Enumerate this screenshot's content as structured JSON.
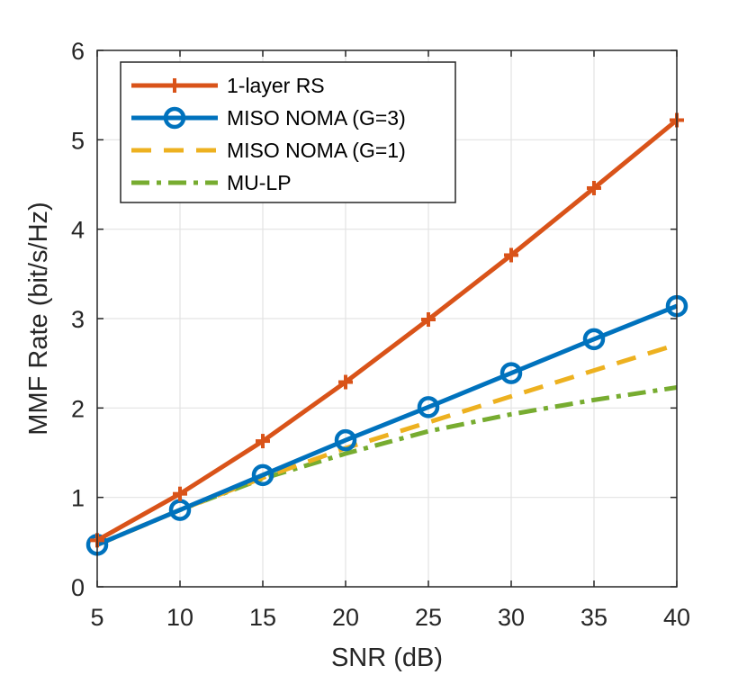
{
  "chart_data": {
    "type": "line",
    "title": "",
    "xlabel": "SNR (dB)",
    "ylabel": "MMF Rate (bit/s/Hz)",
    "x": [
      5,
      10,
      15,
      20,
      25,
      30,
      35,
      40
    ],
    "xlim": [
      5,
      40
    ],
    "ylim": [
      0,
      6
    ],
    "xticks": [
      "5",
      "10",
      "15",
      "20",
      "25",
      "30",
      "35",
      "40"
    ],
    "yticks": [
      "0",
      "1",
      "2",
      "3",
      "4",
      "5",
      "6"
    ],
    "grid": true,
    "legend_position": "top-left",
    "series": [
      {
        "name": "1-layer RS",
        "color": "#D95319",
        "marker": "plus",
        "dash": "solid",
        "values": [
          0.52,
          1.04,
          1.63,
          2.29,
          2.99,
          3.71,
          4.46,
          5.22
        ]
      },
      {
        "name": "MISO NOMA (G=3)",
        "color": "#0072BD",
        "marker": "circle",
        "dash": "solid",
        "values": [
          0.47,
          0.86,
          1.25,
          1.64,
          2.01,
          2.39,
          2.77,
          3.14
        ]
      },
      {
        "name": "MISO NOMA (G=1)",
        "color": "#EDB120",
        "marker": "none",
        "dash": "dashed",
        "values": [
          0.47,
          0.86,
          1.22,
          1.55,
          1.84,
          2.13,
          2.42,
          2.71
        ]
      },
      {
        "name": "MU-LP",
        "color": "#77AC30",
        "marker": "none",
        "dash": "dashdot",
        "values": [
          0.47,
          0.86,
          1.21,
          1.49,
          1.74,
          1.93,
          2.09,
          2.23
        ]
      }
    ]
  }
}
